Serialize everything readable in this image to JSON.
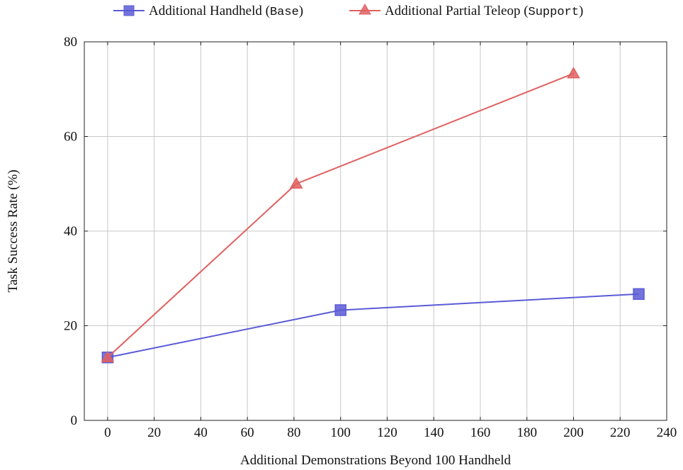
{
  "chart_data": {
    "type": "line",
    "title": "",
    "xlabel": "Additional Demonstrations Beyond 100 Handheld",
    "ylabel": "Task Success Rate (%)",
    "xlim": [
      -10,
      240
    ],
    "ylim": [
      0,
      80
    ],
    "xticks": [
      0,
      20,
      40,
      60,
      80,
      100,
      120,
      140,
      160,
      180,
      200,
      220,
      240
    ],
    "yticks": [
      0,
      20,
      40,
      60,
      80
    ],
    "grid": true,
    "legend_position": "top-center",
    "series": [
      {
        "name": "Additional Handheld",
        "name_code": "Base",
        "marker": "square",
        "color": "#5b5bd6",
        "x": [
          0,
          100,
          228
        ],
        "y": [
          13.3,
          23.3,
          26.7
        ]
      },
      {
        "name": "Additional Partial Teleop",
        "name_code": "Support",
        "marker": "triangle",
        "color": "#e06060",
        "x": [
          0,
          81,
          200
        ],
        "y": [
          13.3,
          50.0,
          73.3
        ]
      }
    ]
  }
}
